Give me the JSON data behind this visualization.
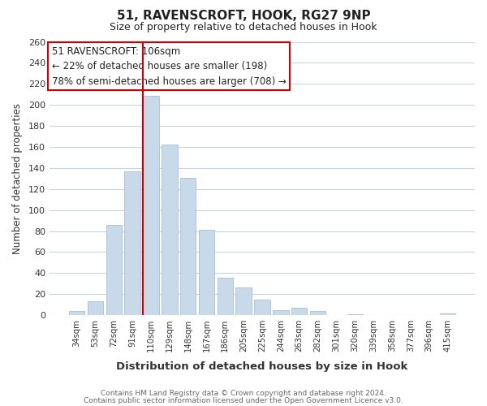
{
  "title": "51, RAVENSCROFT, HOOK, RG27 9NP",
  "subtitle": "Size of property relative to detached houses in Hook",
  "xlabel": "Distribution of detached houses by size in Hook",
  "ylabel": "Number of detached properties",
  "bar_color": "#c8daea",
  "bar_edge_color": "#a8c0d4",
  "categories": [
    "34sqm",
    "53sqm",
    "72sqm",
    "91sqm",
    "110sqm",
    "129sqm",
    "148sqm",
    "167sqm",
    "186sqm",
    "205sqm",
    "225sqm",
    "244sqm",
    "263sqm",
    "282sqm",
    "301sqm",
    "320sqm",
    "339sqm",
    "358sqm",
    "377sqm",
    "396sqm",
    "415sqm"
  ],
  "values": [
    4,
    13,
    86,
    137,
    209,
    162,
    131,
    81,
    36,
    26,
    15,
    5,
    7,
    4,
    0,
    1,
    0,
    0,
    0,
    0,
    2
  ],
  "ylim": [
    0,
    260
  ],
  "yticks": [
    0,
    20,
    40,
    60,
    80,
    100,
    120,
    140,
    160,
    180,
    200,
    220,
    240,
    260
  ],
  "property_line_idx": 4,
  "property_line_color": "#cc0000",
  "annotation_title": "51 RAVENSCROFT: 106sqm",
  "annotation_line1": "← 22% of detached houses are smaller (198)",
  "annotation_line2": "78% of semi-detached houses are larger (708) →",
  "annotation_box_color": "#ffffff",
  "annotation_box_edge_color": "#cc0000",
  "footer_line1": "Contains HM Land Registry data © Crown copyright and database right 2024.",
  "footer_line2": "Contains public sector information licensed under the Open Government Licence v3.0.",
  "fig_background_color": "#ffffff",
  "plot_background_color": "#ffffff",
  "grid_color": "#c8d4dc",
  "title_color": "#222222",
  "label_color": "#333333"
}
